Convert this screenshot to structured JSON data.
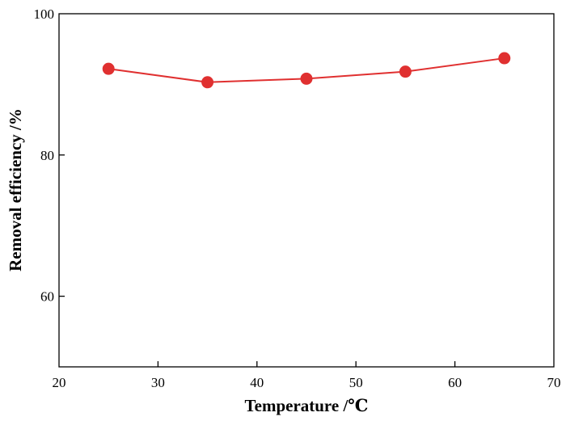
{
  "chart_data": {
    "type": "line",
    "title": "",
    "xlabel": "Temperature /℃",
    "ylabel": "Removal efficiency /%",
    "xlim": [
      20,
      70
    ],
    "ylim": [
      50,
      100
    ],
    "x_ticks": [
      "20",
      "30",
      "40",
      "50",
      "60",
      "70"
    ],
    "y_ticks": [
      "60",
      "80",
      "100"
    ],
    "grid": false,
    "legend": "none",
    "series": [
      {
        "x": [
          25,
          35,
          45,
          55,
          65
        ],
        "y": [
          92.2,
          90.3,
          90.8,
          91.8,
          93.7
        ],
        "color": "#e03030"
      }
    ]
  }
}
